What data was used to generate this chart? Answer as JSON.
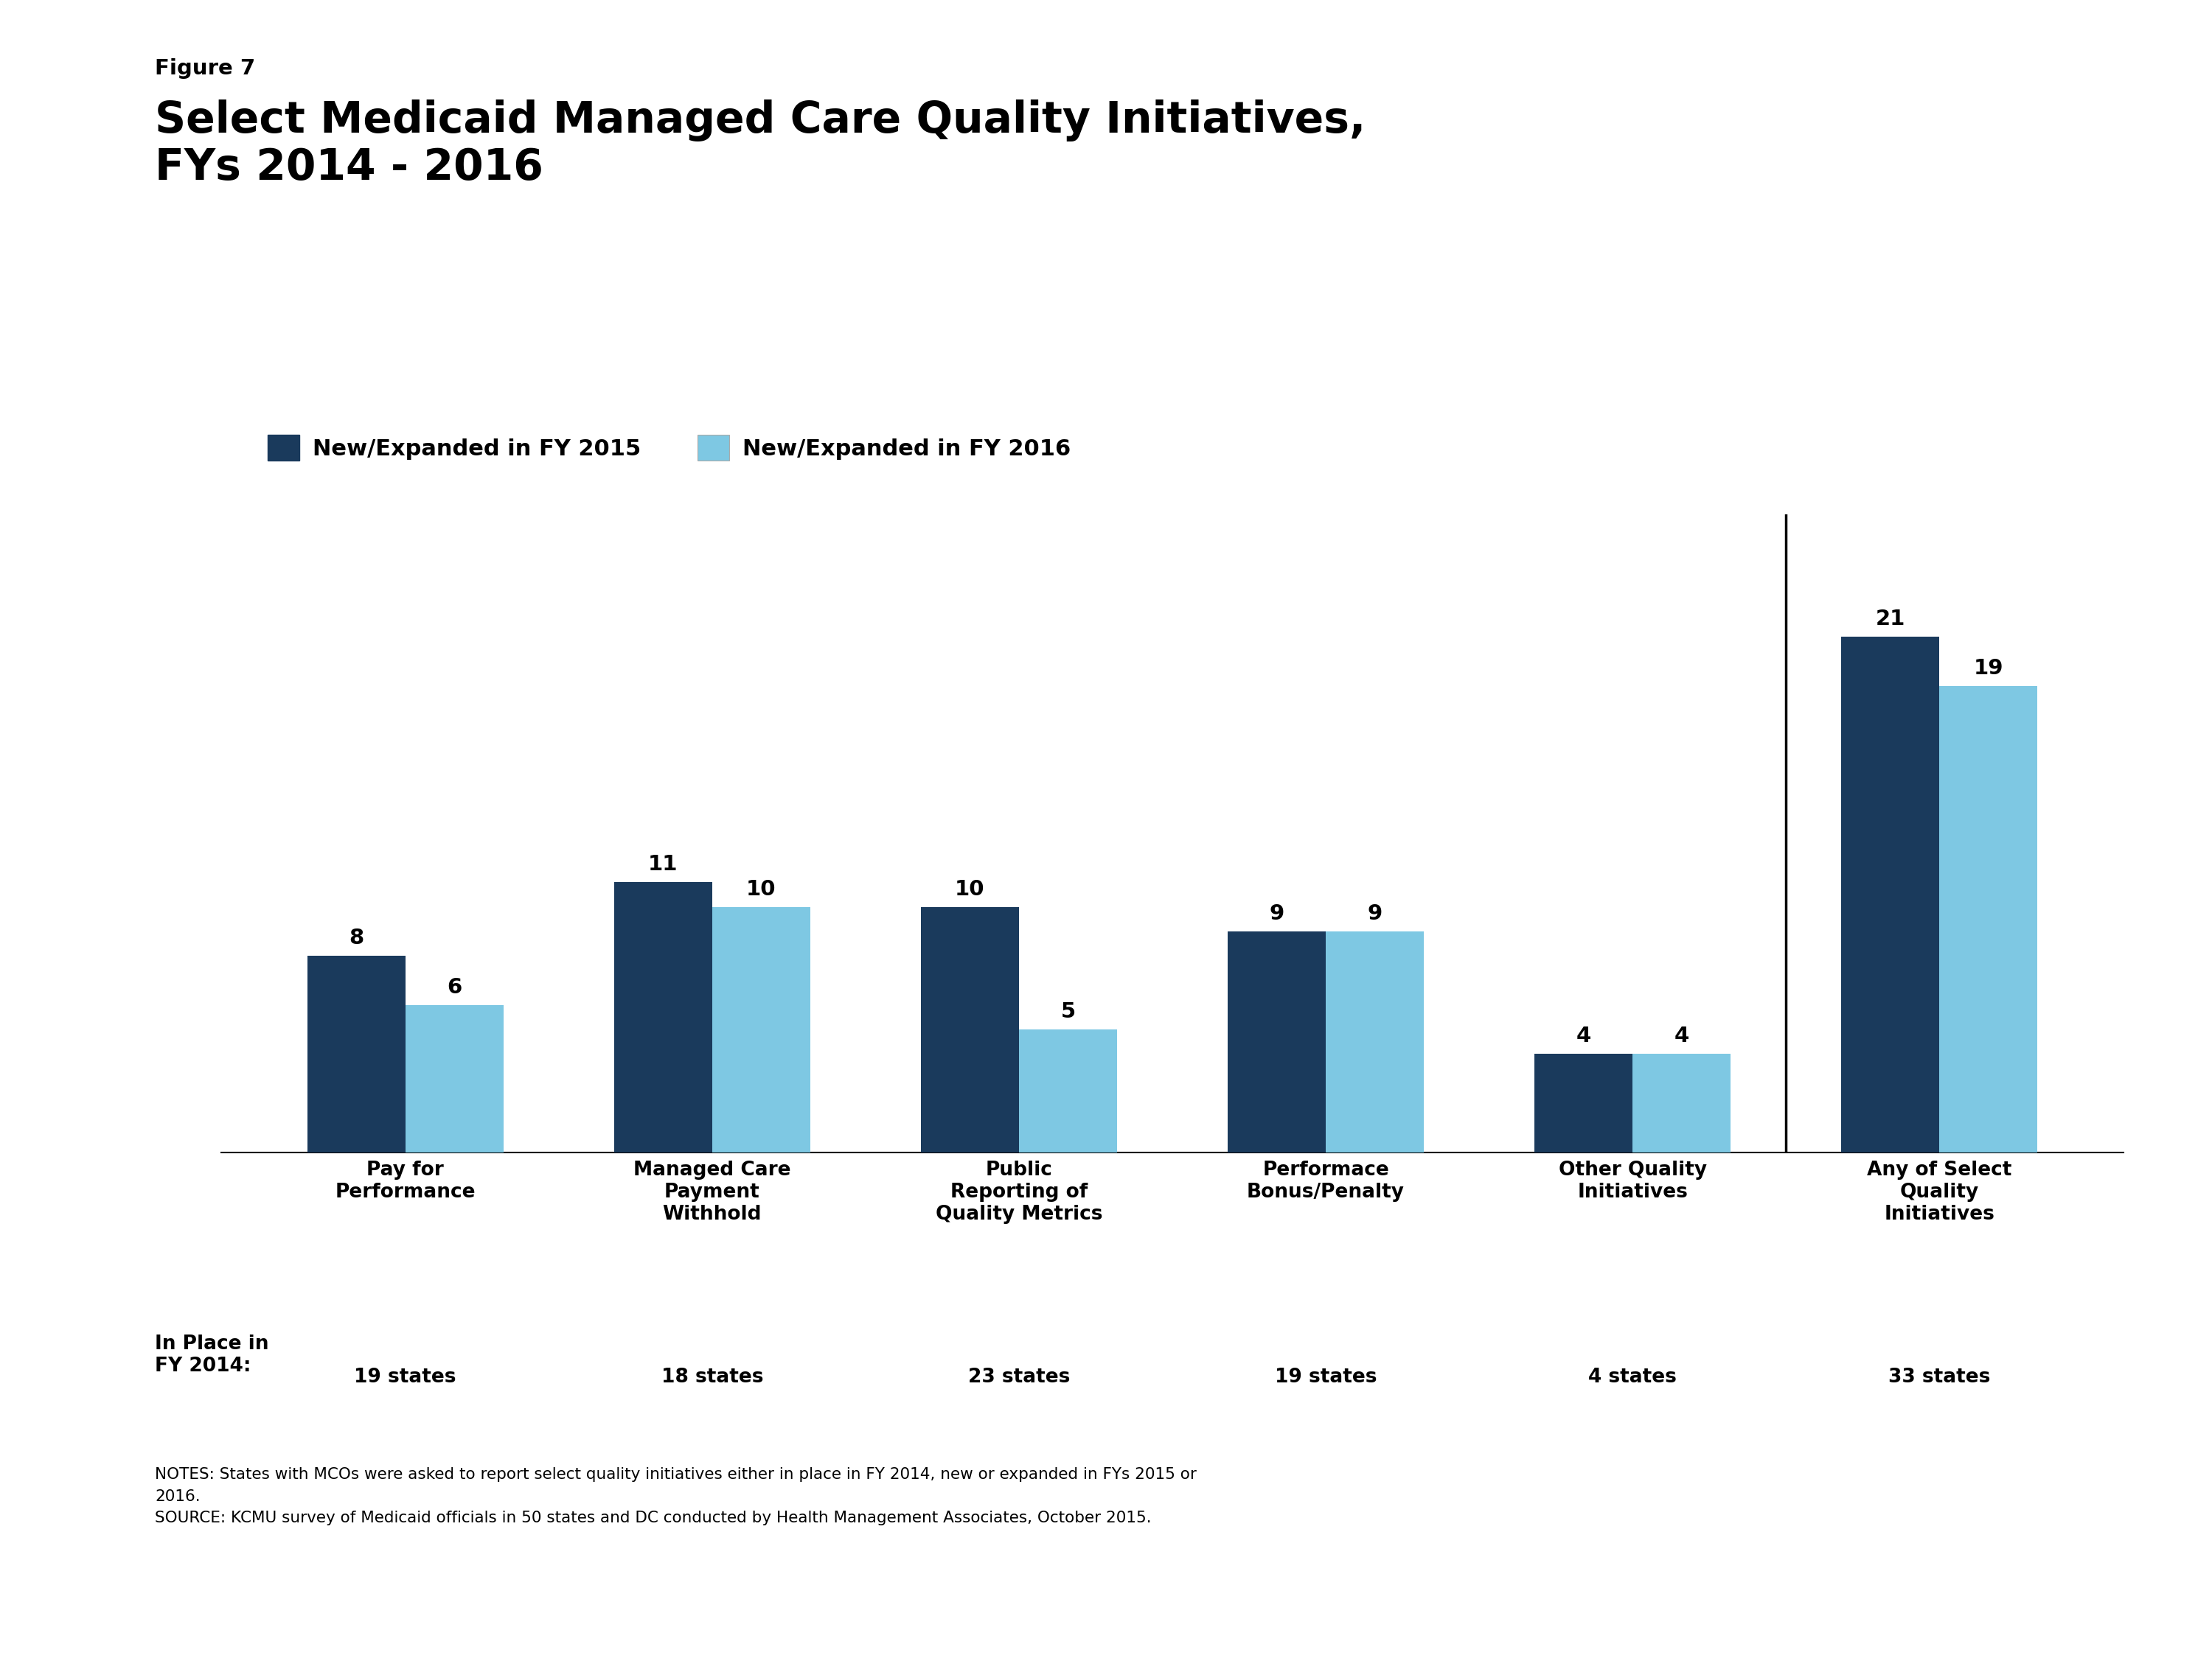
{
  "figure_label": "Figure 7",
  "title": "Select Medicaid Managed Care Quality Initiatives,\nFYs 2014 - 2016",
  "categories": [
    "Pay for\nPerformance",
    "Managed Care\nPayment\nWithhold",
    "Public\nReporting of\nQuality Metrics",
    "Performace\nBonus/Penalty",
    "Other Quality\nInitiatives",
    "Any of Select\nQuality\nInitiatives"
  ],
  "in_place_2014": [
    "19 states",
    "18 states",
    "23 states",
    "19 states",
    "4 states",
    "33 states"
  ],
  "fy2015_values": [
    8,
    11,
    10,
    9,
    4,
    21
  ],
  "fy2016_values": [
    6,
    10,
    5,
    9,
    4,
    19
  ],
  "color_2015": "#1a3a5c",
  "color_2016": "#7ec8e3",
  "legend_2015": "New/Expanded in FY 2015",
  "legend_2016": "New/Expanded in FY 2016",
  "notes_text": "NOTES: States with MCOs were asked to report select quality initiatives either in place in FY 2014, new or expanded in FYs 2015 or\n2016.\nSOURCE: KCMU survey of Medicaid officials in 50 states and DC conducted by Health Management Associates, October 2015.",
  "kaiser_color": "#1a3a5c",
  "bar_width": 0.32,
  "ylim": [
    0,
    26
  ],
  "separator_index": 4.5
}
